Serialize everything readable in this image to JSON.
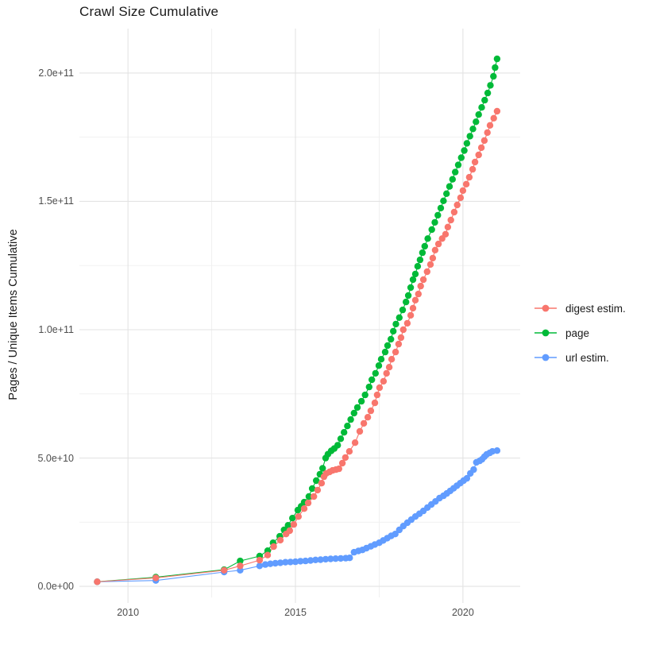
{
  "title": "Crawl Size Cumulative",
  "y_axis_title": "Pages / Unique Items Cumulative",
  "legend": {
    "items": [
      {
        "label": "digest estim.",
        "color": "#F8766D"
      },
      {
        "label": "page",
        "color": "#00BA38"
      },
      {
        "label": "url estim.",
        "color": "#619CFF"
      }
    ]
  },
  "chart_data": {
    "type": "line",
    "title": "Crawl Size Cumulative",
    "xlabel": "",
    "ylabel": "Pages / Unique Items Cumulative",
    "x_unit": "year",
    "value_unit": "counts (values stored in units of 1e10)",
    "xlim": [
      2008.55,
      2021.71
    ],
    "ylim_e10": [
      -0.43,
      21.73
    ],
    "grid": true,
    "legend_position": "right",
    "x_major_ticks": [
      {
        "value": 2010,
        "label": "2010"
      },
      {
        "value": 2015,
        "label": "2015"
      },
      {
        "value": 2020,
        "label": "2020"
      }
    ],
    "x_minor_ticks": [
      2012.5,
      2017.5
    ],
    "y_major_ticks": [
      {
        "value_e10": 0,
        "label": "0.0e+00"
      },
      {
        "value_e10": 5,
        "label": "5.0e+10"
      },
      {
        "value_e10": 10,
        "label": "1.0e+11"
      },
      {
        "value_e10": 15,
        "label": "1.5e+11"
      },
      {
        "value_e10": 20,
        "label": "2.0e+11"
      }
    ],
    "y_minor_ticks_e10": [
      2.5,
      7.5,
      12.5,
      17.5
    ],
    "series": [
      {
        "name": "page",
        "color": "#00BA38",
        "points_year_value_e10": [
          [
            2009.08,
            0.18
          ],
          [
            2010.83,
            0.36
          ],
          [
            2012.87,
            0.65
          ],
          [
            2013.35,
            0.99
          ],
          [
            2013.93,
            1.18
          ],
          [
            2014.17,
            1.39
          ],
          [
            2014.33,
            1.7
          ],
          [
            2014.53,
            1.95
          ],
          [
            2014.66,
            2.2
          ],
          [
            2014.78,
            2.38
          ],
          [
            2014.91,
            2.66
          ],
          [
            2015.07,
            2.97
          ],
          [
            2015.17,
            3.12
          ],
          [
            2015.26,
            3.28
          ],
          [
            2015.4,
            3.5
          ],
          [
            2015.5,
            3.81
          ],
          [
            2015.62,
            4.12
          ],
          [
            2015.73,
            4.37
          ],
          [
            2015.81,
            4.6
          ],
          [
            2015.9,
            5.0
          ],
          [
            2015.97,
            5.15
          ],
          [
            2016.07,
            5.28
          ],
          [
            2016.16,
            5.37
          ],
          [
            2016.26,
            5.5
          ],
          [
            2016.35,
            5.75
          ],
          [
            2016.45,
            6.0
          ],
          [
            2016.55,
            6.25
          ],
          [
            2016.65,
            6.5
          ],
          [
            2016.75,
            6.75
          ],
          [
            2016.85,
            6.97
          ],
          [
            2016.97,
            7.21
          ],
          [
            2017.08,
            7.46
          ],
          [
            2017.2,
            7.77
          ],
          [
            2017.28,
            8.05
          ],
          [
            2017.39,
            8.3
          ],
          [
            2017.49,
            8.6
          ],
          [
            2017.56,
            8.85
          ],
          [
            2017.68,
            9.13
          ],
          [
            2017.75,
            9.38
          ],
          [
            2017.85,
            9.63
          ],
          [
            2017.92,
            9.94
          ],
          [
            2018.0,
            10.22
          ],
          [
            2018.1,
            10.47
          ],
          [
            2018.2,
            10.77
          ],
          [
            2018.3,
            11.08
          ],
          [
            2018.37,
            11.33
          ],
          [
            2018.44,
            11.64
          ],
          [
            2018.51,
            11.95
          ],
          [
            2018.58,
            12.17
          ],
          [
            2018.65,
            12.47
          ],
          [
            2018.72,
            12.72
          ],
          [
            2018.79,
            13.0
          ],
          [
            2018.86,
            13.25
          ],
          [
            2018.95,
            13.55
          ],
          [
            2019.07,
            13.9
          ],
          [
            2019.16,
            14.18
          ],
          [
            2019.25,
            14.46
          ],
          [
            2019.34,
            14.74
          ],
          [
            2019.42,
            15.02
          ],
          [
            2019.51,
            15.3
          ],
          [
            2019.6,
            15.58
          ],
          [
            2019.69,
            15.86
          ],
          [
            2019.77,
            16.14
          ],
          [
            2019.86,
            16.42
          ],
          [
            2019.95,
            16.7
          ],
          [
            2020.04,
            16.98
          ],
          [
            2020.12,
            17.26
          ],
          [
            2020.21,
            17.54
          ],
          [
            2020.3,
            17.82
          ],
          [
            2020.39,
            18.1
          ],
          [
            2020.47,
            18.38
          ],
          [
            2020.56,
            18.66
          ],
          [
            2020.65,
            18.94
          ],
          [
            2020.74,
            19.22
          ],
          [
            2020.82,
            19.52
          ],
          [
            2020.91,
            19.87
          ],
          [
            2020.96,
            20.21
          ],
          [
            2021.02,
            20.55
          ]
        ]
      },
      {
        "name": "url estim.",
        "color": "#619CFF",
        "points_year_value_e10": [
          [
            2009.08,
            0.18
          ],
          [
            2010.83,
            0.23
          ],
          [
            2012.87,
            0.56
          ],
          [
            2013.35,
            0.63
          ],
          [
            2013.93,
            0.8
          ],
          [
            2014.1,
            0.85
          ],
          [
            2014.25,
            0.88
          ],
          [
            2014.4,
            0.9
          ],
          [
            2014.55,
            0.92
          ],
          [
            2014.7,
            0.94
          ],
          [
            2014.85,
            0.95
          ],
          [
            2015.0,
            0.96
          ],
          [
            2015.15,
            0.98
          ],
          [
            2015.3,
            0.99
          ],
          [
            2015.45,
            1.01
          ],
          [
            2015.6,
            1.03
          ],
          [
            2015.75,
            1.04
          ],
          [
            2015.9,
            1.06
          ],
          [
            2016.05,
            1.07
          ],
          [
            2016.2,
            1.08
          ],
          [
            2016.35,
            1.09
          ],
          [
            2016.5,
            1.1
          ],
          [
            2016.62,
            1.11
          ],
          [
            2016.75,
            1.33
          ],
          [
            2016.88,
            1.38
          ],
          [
            2017.0,
            1.42
          ],
          [
            2017.12,
            1.49
          ],
          [
            2017.25,
            1.56
          ],
          [
            2017.37,
            1.63
          ],
          [
            2017.5,
            1.7
          ],
          [
            2017.62,
            1.79
          ],
          [
            2017.74,
            1.88
          ],
          [
            2017.86,
            1.97
          ],
          [
            2017.98,
            2.04
          ],
          [
            2018.1,
            2.2
          ],
          [
            2018.22,
            2.35
          ],
          [
            2018.34,
            2.48
          ],
          [
            2018.46,
            2.6
          ],
          [
            2018.58,
            2.72
          ],
          [
            2018.7,
            2.83
          ],
          [
            2018.82,
            2.94
          ],
          [
            2018.94,
            3.07
          ],
          [
            2019.06,
            3.19
          ],
          [
            2019.18,
            3.31
          ],
          [
            2019.3,
            3.44
          ],
          [
            2019.42,
            3.53
          ],
          [
            2019.52,
            3.62
          ],
          [
            2019.62,
            3.72
          ],
          [
            2019.72,
            3.82
          ],
          [
            2019.82,
            3.92
          ],
          [
            2019.92,
            4.02
          ],
          [
            2020.02,
            4.12
          ],
          [
            2020.12,
            4.21
          ],
          [
            2020.22,
            4.4
          ],
          [
            2020.32,
            4.55
          ],
          [
            2020.4,
            4.83
          ],
          [
            2020.5,
            4.89
          ],
          [
            2020.57,
            4.95
          ],
          [
            2020.64,
            5.05
          ],
          [
            2020.71,
            5.14
          ],
          [
            2020.8,
            5.2
          ],
          [
            2020.88,
            5.26
          ],
          [
            2021.02,
            5.29
          ]
        ]
      },
      {
        "name": "digest estim.",
        "color": "#F8766D",
        "points_year_value_e10": [
          [
            2009.08,
            0.18
          ],
          [
            2010.83,
            0.33
          ],
          [
            2012.87,
            0.63
          ],
          [
            2013.35,
            0.8
          ],
          [
            2013.93,
            1.02
          ],
          [
            2014.17,
            1.22
          ],
          [
            2014.35,
            1.55
          ],
          [
            2014.55,
            1.8
          ],
          [
            2014.72,
            2.04
          ],
          [
            2014.83,
            2.17
          ],
          [
            2014.95,
            2.41
          ],
          [
            2015.09,
            2.72
          ],
          [
            2015.26,
            3.03
          ],
          [
            2015.38,
            3.25
          ],
          [
            2015.55,
            3.5
          ],
          [
            2015.66,
            3.75
          ],
          [
            2015.78,
            4.02
          ],
          [
            2015.85,
            4.27
          ],
          [
            2015.92,
            4.4
          ],
          [
            2016.02,
            4.46
          ],
          [
            2016.11,
            4.52
          ],
          [
            2016.21,
            4.55
          ],
          [
            2016.3,
            4.58
          ],
          [
            2016.4,
            4.8
          ],
          [
            2016.49,
            5.02
          ],
          [
            2016.61,
            5.26
          ],
          [
            2016.78,
            5.6
          ],
          [
            2016.92,
            6.04
          ],
          [
            2017.04,
            6.35
          ],
          [
            2017.16,
            6.59
          ],
          [
            2017.25,
            6.84
          ],
          [
            2017.37,
            7.15
          ],
          [
            2017.44,
            7.46
          ],
          [
            2017.51,
            7.74
          ],
          [
            2017.63,
            7.99
          ],
          [
            2017.72,
            8.3
          ],
          [
            2017.8,
            8.54
          ],
          [
            2017.87,
            8.85
          ],
          [
            2017.99,
            9.13
          ],
          [
            2018.08,
            9.44
          ],
          [
            2018.15,
            9.69
          ],
          [
            2018.22,
            10.0
          ],
          [
            2018.34,
            10.25
          ],
          [
            2018.44,
            10.56
          ],
          [
            2018.51,
            10.84
          ],
          [
            2018.58,
            11.15
          ],
          [
            2018.67,
            11.39
          ],
          [
            2018.74,
            11.7
          ],
          [
            2018.82,
            11.95
          ],
          [
            2018.93,
            12.26
          ],
          [
            2019.03,
            12.54
          ],
          [
            2019.1,
            12.79
          ],
          [
            2019.17,
            13.1
          ],
          [
            2019.27,
            13.34
          ],
          [
            2019.38,
            13.55
          ],
          [
            2019.48,
            13.72
          ],
          [
            2019.55,
            14.0
          ],
          [
            2019.64,
            14.27
          ],
          [
            2019.74,
            14.58
          ],
          [
            2019.83,
            14.86
          ],
          [
            2019.93,
            15.14
          ],
          [
            2020.0,
            15.42
          ],
          [
            2020.1,
            15.67
          ],
          [
            2020.19,
            15.94
          ],
          [
            2020.29,
            16.25
          ],
          [
            2020.36,
            16.53
          ],
          [
            2020.47,
            16.81
          ],
          [
            2020.55,
            17.09
          ],
          [
            2020.64,
            17.37
          ],
          [
            2020.73,
            17.68
          ],
          [
            2020.81,
            17.96
          ],
          [
            2020.92,
            18.24
          ],
          [
            2021.02,
            18.51
          ]
        ]
      }
    ],
    "style": {
      "grid_major_color": "#e3e3e3",
      "grid_minor_color": "#efefef",
      "tick_stub_color": "#d6d6d6",
      "point_radius": 4.2,
      "line_width": 1.1
    }
  },
  "layout_note": ""
}
